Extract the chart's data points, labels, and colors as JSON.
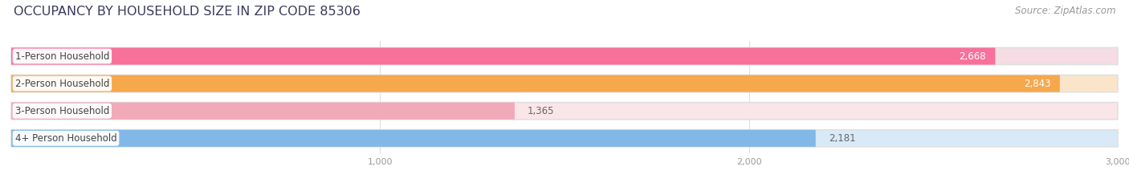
{
  "title": "OCCUPANCY BY HOUSEHOLD SIZE IN ZIP CODE 85306",
  "source": "Source: ZipAtlas.com",
  "categories": [
    "1-Person Household",
    "2-Person Household",
    "3-Person Household",
    "4+ Person Household"
  ],
  "values": [
    2668,
    2843,
    1365,
    2181
  ],
  "bar_colors": [
    "#F7719A",
    "#F5A84C",
    "#F2AABB",
    "#82B8E8"
  ],
  "bar_bg_colors": [
    "#F5DCE5",
    "#FAE5CB",
    "#FAE5E9",
    "#D8EAF7"
  ],
  "value_label_inside": [
    true,
    true,
    false,
    false
  ],
  "xlim": [
    0,
    3000
  ],
  "xtick_positions": [
    1000,
    2000,
    3000
  ],
  "xtick_labels": [
    "1,000",
    "2,000",
    "3,000"
  ],
  "title_fontsize": 11.5,
  "source_fontsize": 8.5,
  "bar_height": 0.62,
  "bar_gap": 0.38,
  "figsize": [
    14.06,
    2.33
  ],
  "dpi": 100,
  "bg_color": "#FFFFFF",
  "bar_label_fontsize": 8.5,
  "cat_label_fontsize": 8.5,
  "grid_color": "#DDDDDD",
  "tick_color": "#999999",
  "title_color": "#3A3A5C",
  "source_color": "#999999",
  "value_inside_color": "#FFFFFF",
  "value_outside_color": "#666666"
}
